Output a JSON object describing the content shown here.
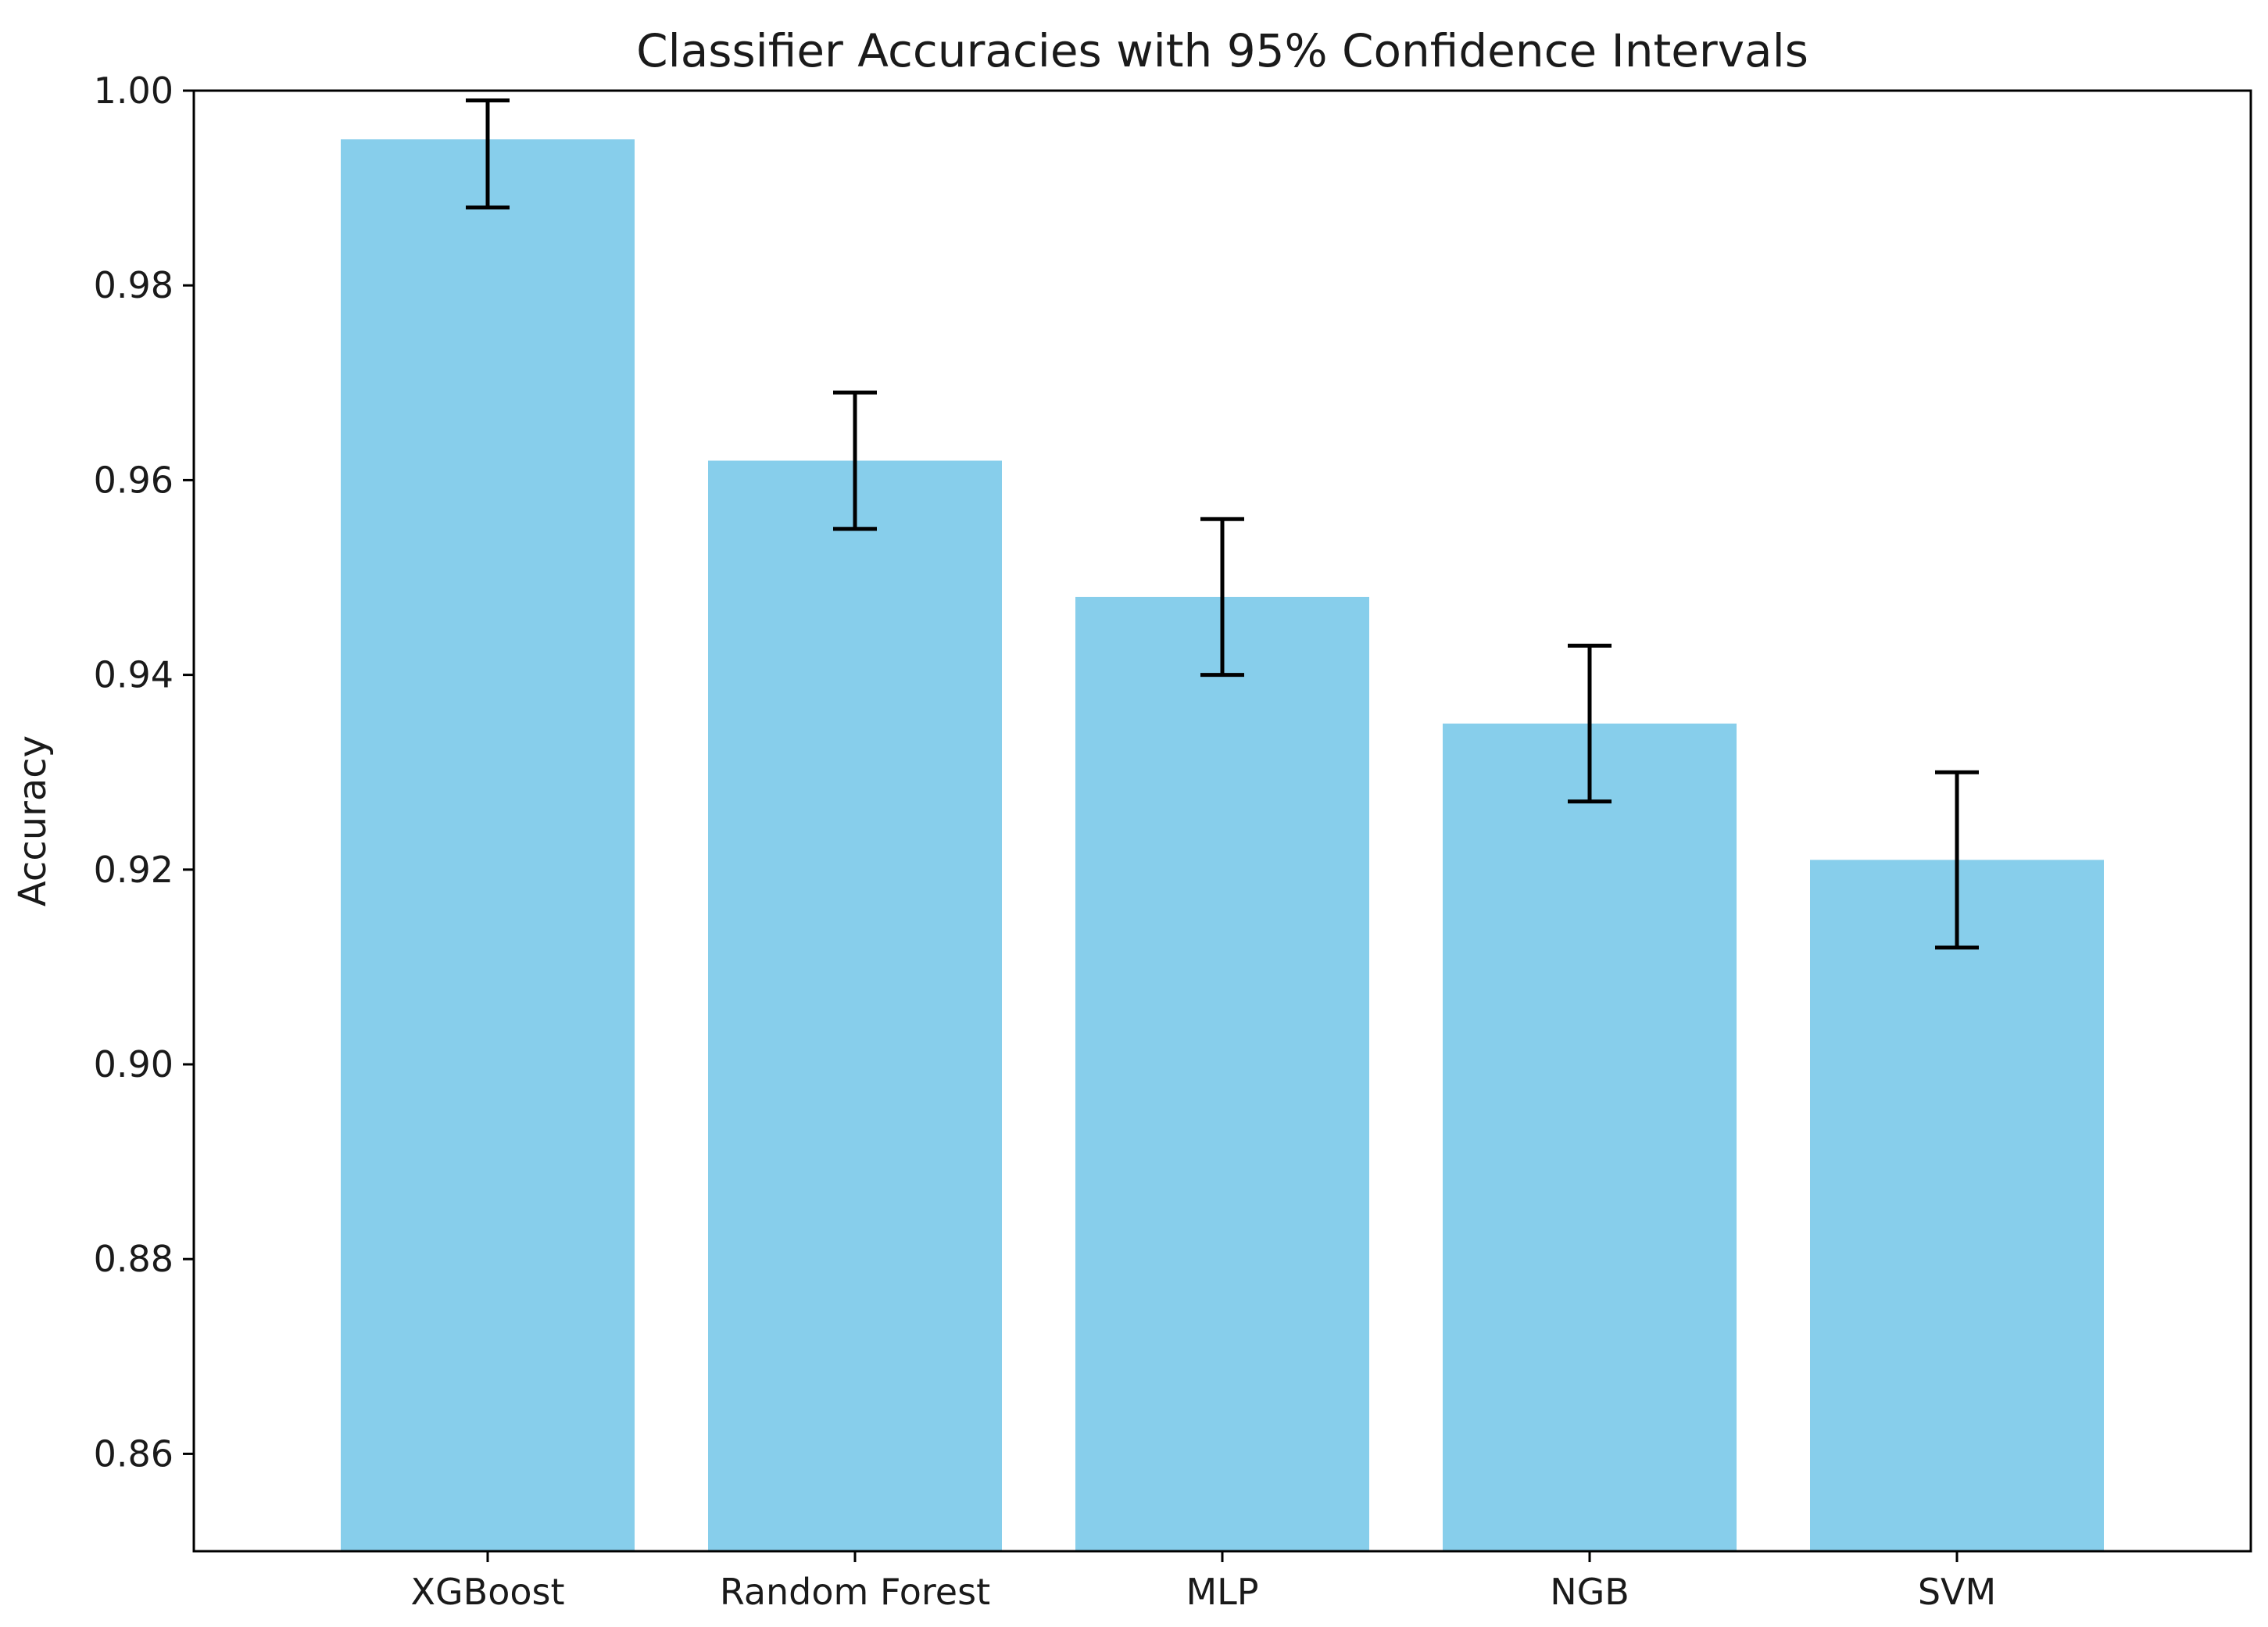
{
  "chart_data": {
    "type": "bar",
    "title": "Classifier Accuracies with 95% Confidence Intervals",
    "xlabel": "",
    "ylabel": "Accuracy",
    "categories": [
      "XGBoost",
      "Random Forest",
      "MLP",
      "NGB",
      "SVM"
    ],
    "values": [
      0.995,
      0.962,
      0.948,
      0.935,
      0.921
    ],
    "ci_lower": [
      0.988,
      0.955,
      0.94,
      0.927,
      0.912
    ],
    "ci_upper": [
      0.999,
      0.969,
      0.956,
      0.943,
      0.93
    ],
    "ylim": [
      0.85,
      1.0
    ],
    "yticks": [
      0.86,
      0.88,
      0.9,
      0.92,
      0.94,
      0.96,
      0.98,
      1.0
    ],
    "ytick_labels": [
      "0.86",
      "0.88",
      "0.90",
      "0.92",
      "0.94",
      "0.96",
      "0.98",
      "1.00"
    ],
    "bar_color": "#87ceeb",
    "errorbar_color": "#000000",
    "grid": false,
    "legend": "none"
  }
}
